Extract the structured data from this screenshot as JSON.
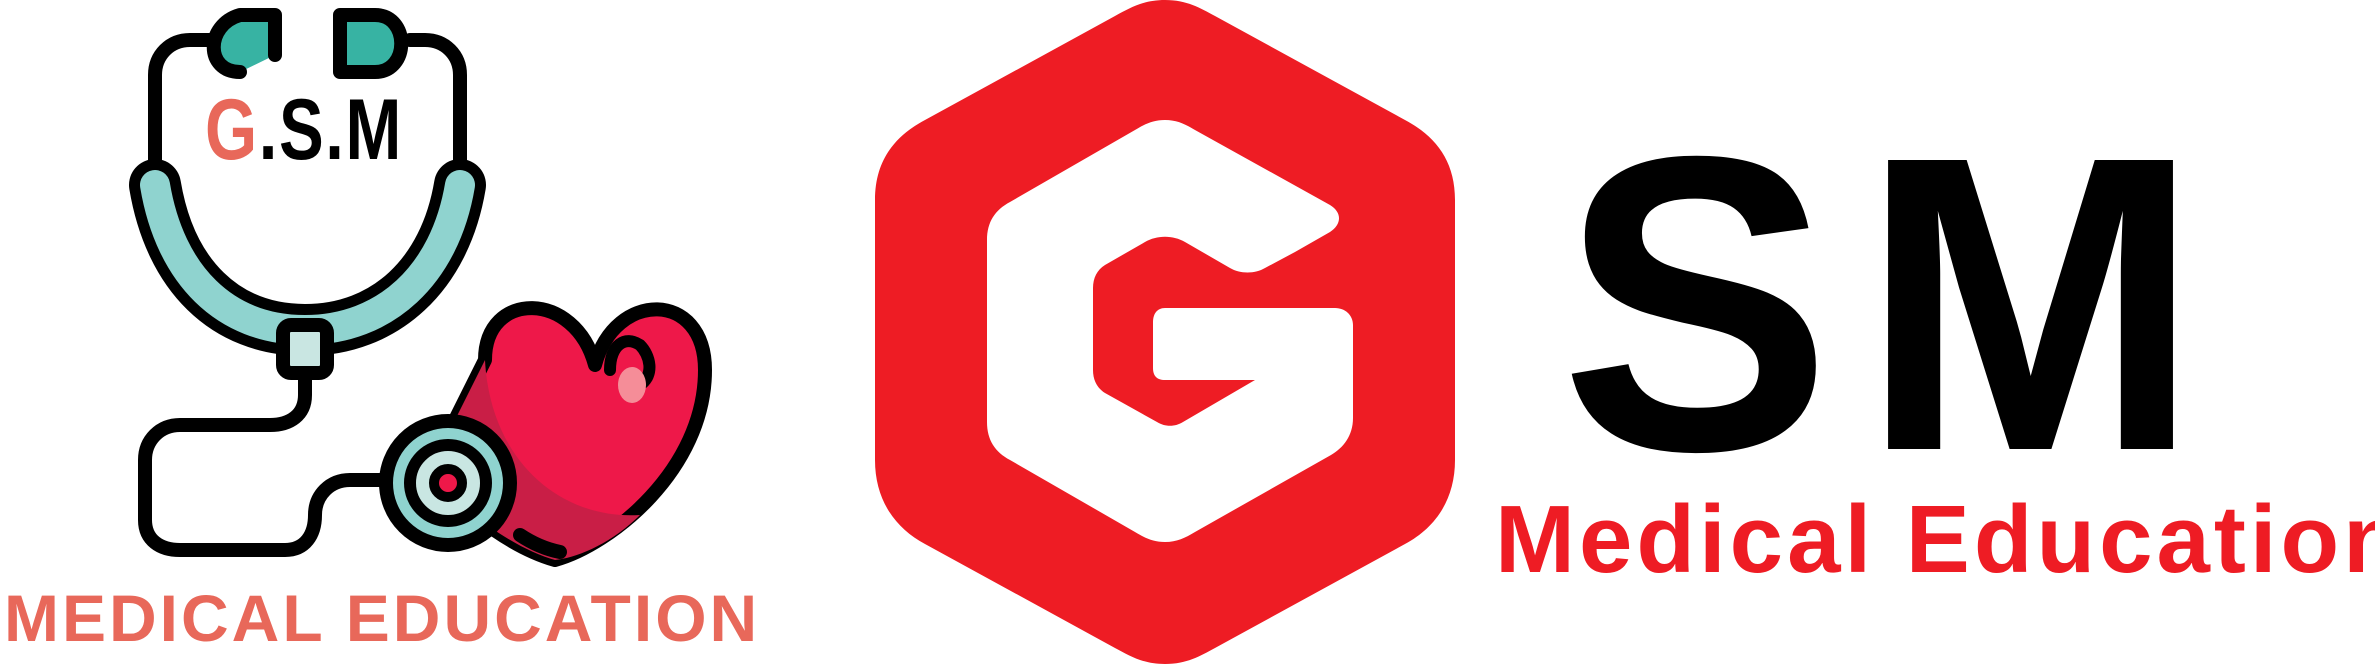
{
  "left_logo": {
    "brand_g": "G",
    "brand_rest": ".S.M",
    "tagline": "MEDICAL EDUCATION",
    "icons": [
      "stethoscope-icon",
      "heart-icon"
    ],
    "colors": {
      "teal": "#37b3a3",
      "light_teal": "#8fd3cf",
      "heart_red": "#ee1849",
      "heart_dark": "#c91e46",
      "coral": "#e8685a"
    }
  },
  "right_logo": {
    "icon": "hexagon-g-icon",
    "title": "SM",
    "tagline": "Medical Education",
    "colors": {
      "red": "#ee1c24",
      "black": "#000000",
      "white": "#ffffff"
    }
  }
}
